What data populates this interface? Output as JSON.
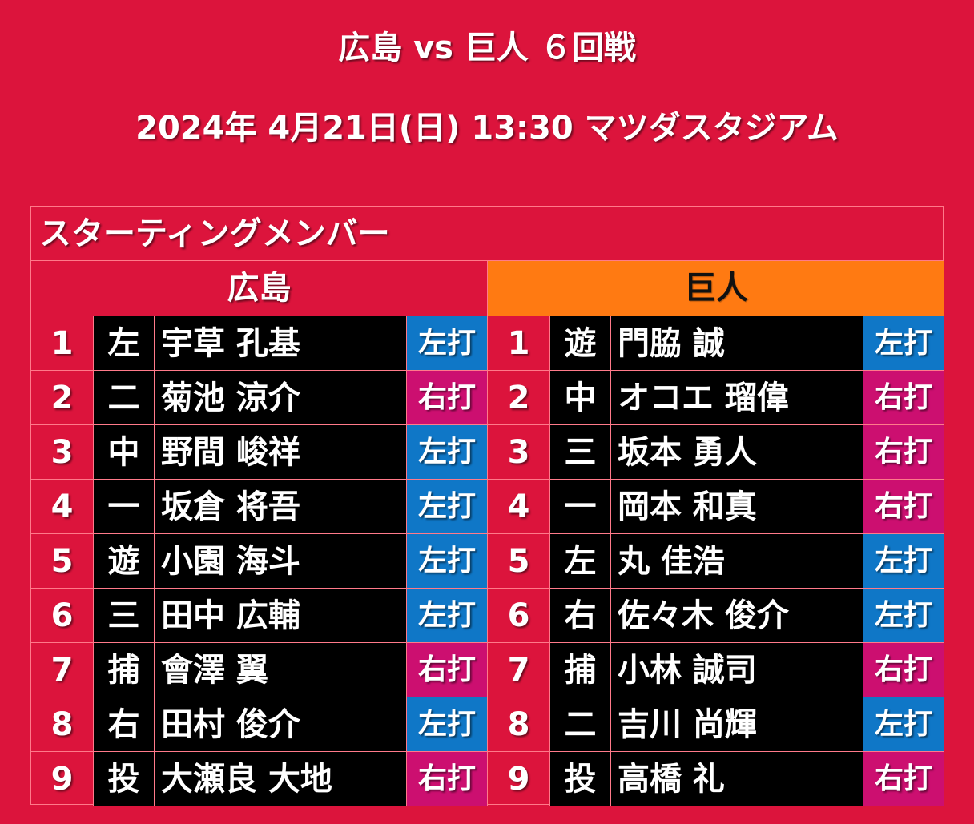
{
  "header": {
    "title": "広島 vs 巨人 ６回戦",
    "subtitle": "2024年 4月21日(日) 13:30 マツダスタジアム"
  },
  "panel": {
    "title": "スターティングメンバー",
    "home_team": "広島",
    "away_team": "巨人"
  },
  "home": [
    {
      "order": "1",
      "pos": "左",
      "name": "宇草 孔基",
      "bat": "左打",
      "side": "left"
    },
    {
      "order": "2",
      "pos": "二",
      "name": "菊池 涼介",
      "bat": "右打",
      "side": "right"
    },
    {
      "order": "3",
      "pos": "中",
      "name": "野間 峻祥",
      "bat": "左打",
      "side": "left"
    },
    {
      "order": "4",
      "pos": "一",
      "name": "坂倉 将吾",
      "bat": "左打",
      "side": "left"
    },
    {
      "order": "5",
      "pos": "遊",
      "name": "小園 海斗",
      "bat": "左打",
      "side": "left"
    },
    {
      "order": "6",
      "pos": "三",
      "name": "田中 広輔",
      "bat": "左打",
      "side": "left"
    },
    {
      "order": "7",
      "pos": "捕",
      "name": "會澤 翼",
      "bat": "右打",
      "side": "right"
    },
    {
      "order": "8",
      "pos": "右",
      "name": "田村 俊介",
      "bat": "左打",
      "side": "left"
    },
    {
      "order": "9",
      "pos": "投",
      "name": "大瀬良 大地",
      "bat": "右打",
      "side": "right"
    }
  ],
  "away": [
    {
      "order": "1",
      "pos": "遊",
      "name": "門脇 誠",
      "bat": "左打",
      "side": "left"
    },
    {
      "order": "2",
      "pos": "中",
      "name": "オコエ 瑠偉",
      "bat": "右打",
      "side": "right"
    },
    {
      "order": "3",
      "pos": "三",
      "name": "坂本 勇人",
      "bat": "右打",
      "side": "right"
    },
    {
      "order": "4",
      "pos": "一",
      "name": "岡本 和真",
      "bat": "右打",
      "side": "right"
    },
    {
      "order": "5",
      "pos": "左",
      "name": "丸 佳浩",
      "bat": "左打",
      "side": "left"
    },
    {
      "order": "6",
      "pos": "右",
      "name": "佐々木 俊介",
      "bat": "左打",
      "side": "left"
    },
    {
      "order": "7",
      "pos": "捕",
      "name": "小林 誠司",
      "bat": "右打",
      "side": "right"
    },
    {
      "order": "8",
      "pos": "二",
      "name": "吉川 尚輝",
      "bat": "左打",
      "side": "left"
    },
    {
      "order": "9",
      "pos": "投",
      "name": "高橋 礼",
      "bat": "右打",
      "side": "right"
    }
  ],
  "colors": {
    "background": "#dc143c",
    "away_header": "#ff7a12",
    "bat_left": "#0f77c7",
    "bat_right": "#cc0f70"
  }
}
